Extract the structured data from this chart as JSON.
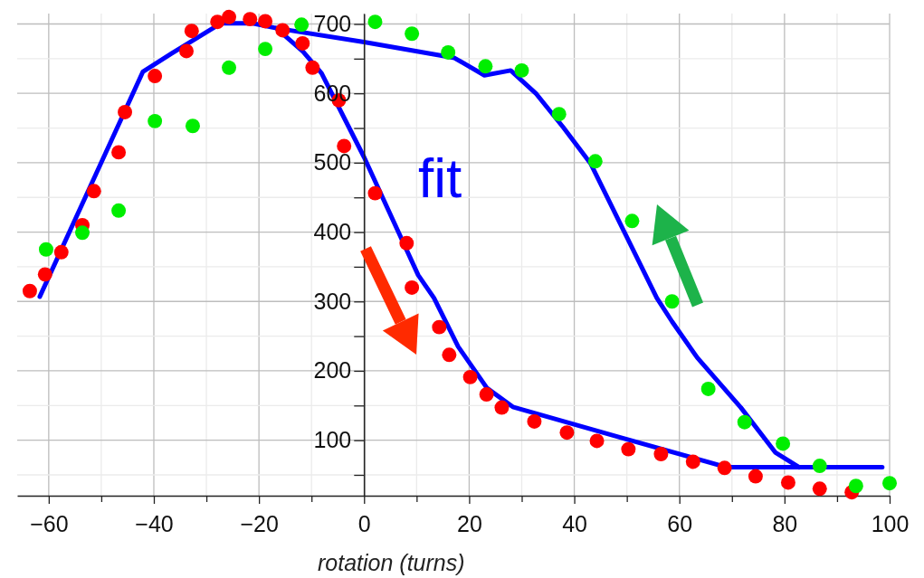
{
  "chart_data": {
    "type": "scatter",
    "xlabel": "rotation (turns)",
    "xlim": [
      -66,
      100
    ],
    "ylim": [
      20,
      715
    ],
    "xticks": [
      -60,
      {
        "value": -50,
        "label": null
      },
      -40,
      {
        "value": -30,
        "label": null
      },
      -20,
      {
        "value": -10,
        "label": null
      },
      0,
      {
        "value": 10,
        "label": null
      },
      20,
      {
        "value": 30,
        "label": null
      },
      40,
      {
        "value": 50,
        "label": null
      },
      60,
      {
        "value": 70,
        "label": null
      },
      80,
      {
        "value": 90,
        "label": null
      },
      100
    ],
    "yticks": [
      {
        "value": 50,
        "label": null
      },
      100,
      {
        "value": 150,
        "label": null
      },
      200,
      {
        "value": 250,
        "label": null
      },
      300,
      {
        "value": 350,
        "label": null
      },
      400,
      {
        "value": 450,
        "label": null
      },
      500,
      {
        "value": 550,
        "label": null
      },
      600,
      {
        "value": 650,
        "label": null
      },
      700
    ],
    "grid": true,
    "marker": "circle",
    "annotations": [
      "fit"
    ],
    "series": [
      {
        "color": "#ff0000",
        "x": [
          -63.6,
          -60.7,
          -57.6,
          -53.6,
          -51.4,
          -46.7,
          -45.5,
          -39.8,
          -33.8,
          -32.8,
          -27.9,
          -25.7,
          -21.7,
          -18.8,
          -15.5,
          -11.7,
          -9.8,
          -4.8,
          -3.8,
          2.1,
          8.1,
          9.1,
          14.3,
          16.2,
          20.2,
          23.3,
          26.2,
          32.4,
          38.6,
          44.3,
          50.3,
          56.5,
          62.6,
          68.6,
          74.5,
          80.7,
          86.7,
          92.8
        ],
        "values": [
          315,
          339,
          371,
          410,
          459,
          515,
          573,
          625,
          661,
          690,
          703,
          710,
          707,
          704,
          691,
          672,
          637,
          590,
          524,
          456,
          384,
          320,
          263,
          223,
          191,
          166,
          147,
          127,
          111,
          99,
          87,
          80,
          69,
          60,
          48,
          39,
          30,
          25
        ]
      },
      {
        "color": "#00ee00",
        "x": [
          -60.5,
          -53.6,
          -46.7,
          -39.8,
          -32.6,
          -25.7,
          -18.8,
          -11.9,
          2.1,
          9.1,
          16.0,
          23.1,
          30.0,
          37.1,
          44.0,
          51.0,
          58.6,
          65.5,
          72.4,
          79.7,
          86.7,
          93.6,
          100
        ],
        "values": [
          375,
          399,
          431,
          560,
          553,
          637,
          664,
          699,
          703,
          686,
          659,
          639,
          633,
          570,
          502,
          416,
          300,
          174,
          126,
          95,
          63,
          34,
          38
        ]
      },
      {
        "type": "line",
        "marker": "none",
        "color": "#0000ff",
        "x": [
          -61.7,
          -42.1,
          -36.7,
          -27.2,
          -21.2,
          -16.7,
          -11.6,
          -8.1,
          0,
          10.3,
          13.3,
          17.9,
          23.4,
          28.3,
          48.3,
          69.0,
          98.6
        ],
        "values": [
          307,
          631,
          657,
          701,
          701,
          694,
          660,
          629,
          508,
          338,
          305,
          235,
          175,
          148,
          105,
          61,
          61
        ]
      },
      {
        "type": "line",
        "marker": "none",
        "color": "#0000ff",
        "x": [
          82.8,
          78.3,
          71.7,
          63.4,
          58.6,
          55.7,
          43.1,
          37.9,
          32.8,
          27.9,
          22.9,
          17.2,
          0,
          -16.7
        ],
        "values": [
          61,
          82,
          147,
          219,
          271,
          305,
          499,
          551,
          599,
          633,
          626,
          651,
          674,
          694
        ]
      }
    ]
  }
}
